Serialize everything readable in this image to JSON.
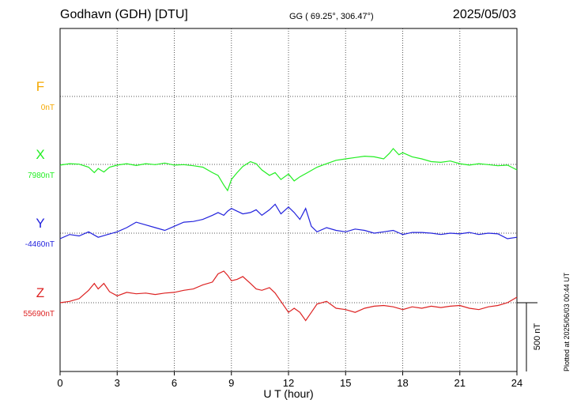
{
  "header": {
    "station": "Godhavn (GDH)  [DTU]",
    "coords": "GG ( 69.25°, 306.47°)",
    "date": "2025/05/03"
  },
  "footer_note": "Plotted at 2025/06/03 00:44 UT",
  "scale_label": "500 nT",
  "chart_data": {
    "type": "line",
    "xlabel": "U T (hour)",
    "x_ticks": [
      "0",
      "3",
      "6",
      "9",
      "12",
      "15",
      "18",
      "21",
      "24"
    ],
    "xlim": [
      0,
      24
    ],
    "scale_nT": 500,
    "series": [
      {
        "name": "F",
        "baseline_label": "0nT",
        "baseline": 0,
        "color": "#f5a800",
        "points": []
      },
      {
        "name": "X",
        "baseline_label": "7980nT",
        "baseline": 7980,
        "color": "#22ee22",
        "points": [
          [
            0,
            7975
          ],
          [
            0.5,
            7985
          ],
          [
            1,
            7982
          ],
          [
            1.5,
            7960
          ],
          [
            1.8,
            7920
          ],
          [
            2,
            7950
          ],
          [
            2.3,
            7925
          ],
          [
            2.6,
            7960
          ],
          [
            3,
            7975
          ],
          [
            3.5,
            7985
          ],
          [
            4,
            7972
          ],
          [
            4.5,
            7985
          ],
          [
            5,
            7978
          ],
          [
            5.5,
            7990
          ],
          [
            6,
            7975
          ],
          [
            6.5,
            7978
          ],
          [
            7,
            7970
          ],
          [
            7.5,
            7960
          ],
          [
            8,
            7920
          ],
          [
            8.3,
            7900
          ],
          [
            8.6,
            7830
          ],
          [
            8.8,
            7790
          ],
          [
            9,
            7870
          ],
          [
            9.3,
            7920
          ],
          [
            9.6,
            7965
          ],
          [
            10,
            8000
          ],
          [
            10.3,
            7985
          ],
          [
            10.6,
            7940
          ],
          [
            11,
            7900
          ],
          [
            11.3,
            7920
          ],
          [
            11.6,
            7870
          ],
          [
            12,
            7910
          ],
          [
            12.3,
            7860
          ],
          [
            12.6,
            7890
          ],
          [
            13,
            7920
          ],
          [
            13.5,
            7960
          ],
          [
            14,
            7985
          ],
          [
            14.5,
            8010
          ],
          [
            15,
            8020
          ],
          [
            15.5,
            8030
          ],
          [
            16,
            8040
          ],
          [
            16.5,
            8035
          ],
          [
            17,
            8020
          ],
          [
            17.3,
            8060
          ],
          [
            17.5,
            8095
          ],
          [
            17.8,
            8050
          ],
          [
            18,
            8065
          ],
          [
            18.5,
            8035
          ],
          [
            19,
            8020
          ],
          [
            19.5,
            8000
          ],
          [
            20,
            7995
          ],
          [
            20.5,
            8005
          ],
          [
            21,
            7985
          ],
          [
            21.5,
            7975
          ],
          [
            22,
            7985
          ],
          [
            22.5,
            7978
          ],
          [
            23,
            7970
          ],
          [
            23.5,
            7975
          ],
          [
            24,
            7940
          ]
        ]
      },
      {
        "name": "Y",
        "baseline_label": "-4460nT",
        "baseline": -4460,
        "color": "#2222dd",
        "points": [
          [
            0,
            -4500
          ],
          [
            0.5,
            -4470
          ],
          [
            1,
            -4480
          ],
          [
            1.5,
            -4450
          ],
          [
            2,
            -4490
          ],
          [
            2.5,
            -4470
          ],
          [
            3,
            -4450
          ],
          [
            3.5,
            -4420
          ],
          [
            4,
            -4380
          ],
          [
            4.5,
            -4400
          ],
          [
            5,
            -4420
          ],
          [
            5.5,
            -4440
          ],
          [
            6,
            -4410
          ],
          [
            6.5,
            -4380
          ],
          [
            7,
            -4375
          ],
          [
            7.5,
            -4360
          ],
          [
            8,
            -4330
          ],
          [
            8.3,
            -4310
          ],
          [
            8.6,
            -4330
          ],
          [
            8.8,
            -4300
          ],
          [
            9,
            -4280
          ],
          [
            9.3,
            -4300
          ],
          [
            9.6,
            -4320
          ],
          [
            10,
            -4310
          ],
          [
            10.3,
            -4290
          ],
          [
            10.6,
            -4330
          ],
          [
            11,
            -4290
          ],
          [
            11.3,
            -4250
          ],
          [
            11.6,
            -4320
          ],
          [
            12,
            -4270
          ],
          [
            12.3,
            -4310
          ],
          [
            12.6,
            -4360
          ],
          [
            12.9,
            -4280
          ],
          [
            13.2,
            -4410
          ],
          [
            13.5,
            -4450
          ],
          [
            14,
            -4420
          ],
          [
            14.5,
            -4440
          ],
          [
            15,
            -4450
          ],
          [
            15.5,
            -4430
          ],
          [
            16,
            -4440
          ],
          [
            16.5,
            -4460
          ],
          [
            17,
            -4450
          ],
          [
            17.5,
            -4440
          ],
          [
            18,
            -4470
          ],
          [
            18.5,
            -4455
          ],
          [
            19,
            -4455
          ],
          [
            19.5,
            -4460
          ],
          [
            20,
            -4470
          ],
          [
            20.5,
            -4460
          ],
          [
            21,
            -4465
          ],
          [
            21.5,
            -4455
          ],
          [
            22,
            -4470
          ],
          [
            22.5,
            -4460
          ],
          [
            23,
            -4465
          ],
          [
            23.5,
            -4500
          ],
          [
            24,
            -4490
          ]
        ]
      },
      {
        "name": "Z",
        "baseline_label": "55690nT",
        "baseline": 55690,
        "color": "#dd2222",
        "points": [
          [
            0,
            55690
          ],
          [
            0.5,
            55700
          ],
          [
            1,
            55720
          ],
          [
            1.5,
            55780
          ],
          [
            1.8,
            55830
          ],
          [
            2,
            55790
          ],
          [
            2.3,
            55830
          ],
          [
            2.6,
            55770
          ],
          [
            3,
            55740
          ],
          [
            3.5,
            55765
          ],
          [
            4,
            55755
          ],
          [
            4.5,
            55760
          ],
          [
            5,
            55750
          ],
          [
            5.5,
            55760
          ],
          [
            6,
            55765
          ],
          [
            6.5,
            55780
          ],
          [
            7,
            55790
          ],
          [
            7.5,
            55820
          ],
          [
            8,
            55840
          ],
          [
            8.3,
            55900
          ],
          [
            8.6,
            55920
          ],
          [
            8.8,
            55890
          ],
          [
            9,
            55850
          ],
          [
            9.3,
            55860
          ],
          [
            9.6,
            55880
          ],
          [
            10,
            55830
          ],
          [
            10.3,
            55790
          ],
          [
            10.6,
            55780
          ],
          [
            11,
            55800
          ],
          [
            11.3,
            55760
          ],
          [
            11.6,
            55700
          ],
          [
            12,
            55620
          ],
          [
            12.3,
            55650
          ],
          [
            12.6,
            55620
          ],
          [
            12.9,
            55560
          ],
          [
            13.2,
            55620
          ],
          [
            13.5,
            55680
          ],
          [
            14,
            55700
          ],
          [
            14.5,
            55650
          ],
          [
            15,
            55640
          ],
          [
            15.5,
            55620
          ],
          [
            16,
            55650
          ],
          [
            16.5,
            55665
          ],
          [
            17,
            55670
          ],
          [
            17.5,
            55660
          ],
          [
            18,
            55640
          ],
          [
            18.5,
            55660
          ],
          [
            19,
            55650
          ],
          [
            19.5,
            55665
          ],
          [
            20,
            55655
          ],
          [
            20.5,
            55665
          ],
          [
            21,
            55670
          ],
          [
            21.5,
            55650
          ],
          [
            22,
            55640
          ],
          [
            22.5,
            55660
          ],
          [
            23,
            55670
          ],
          [
            23.5,
            55690
          ],
          [
            24,
            55730
          ]
        ]
      }
    ]
  }
}
